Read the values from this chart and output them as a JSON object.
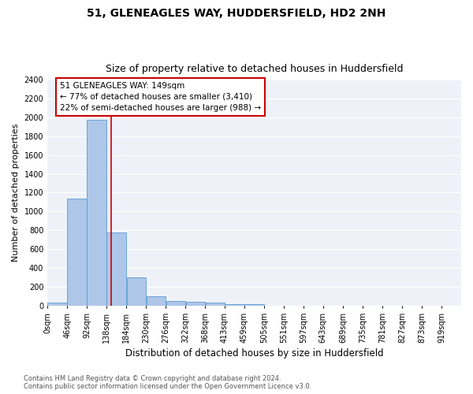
{
  "title": "51, GLENEAGLES WAY, HUDDERSFIELD, HD2 2NH",
  "subtitle": "Size of property relative to detached houses in Huddersfield",
  "xlabel": "Distribution of detached houses by size in Huddersfield",
  "ylabel": "Number of detached properties",
  "bin_labels": [
    "0sqm",
    "46sqm",
    "92sqm",
    "138sqm",
    "184sqm",
    "230sqm",
    "276sqm",
    "322sqm",
    "368sqm",
    "413sqm",
    "459sqm",
    "505sqm",
    "551sqm",
    "597sqm",
    "643sqm",
    "689sqm",
    "735sqm",
    "781sqm",
    "827sqm",
    "873sqm",
    "919sqm"
  ],
  "bin_edges": [
    0,
    46,
    92,
    138,
    184,
    230,
    276,
    322,
    368,
    413,
    459,
    505,
    551,
    597,
    643,
    689,
    735,
    781,
    827,
    873,
    919
  ],
  "bar_heights": [
    35,
    1135,
    1970,
    780,
    300,
    100,
    50,
    45,
    30,
    20,
    15,
    0,
    0,
    0,
    0,
    0,
    0,
    0,
    0,
    0
  ],
  "bar_color": "#aec6e8",
  "bar_edge_color": "#5b9bd5",
  "property_size": 149,
  "red_line_color": "#cc0000",
  "ylim": [
    0,
    2400
  ],
  "yticks": [
    0,
    200,
    400,
    600,
    800,
    1000,
    1200,
    1400,
    1600,
    1800,
    2000,
    2200,
    2400
  ],
  "annotation_text": "51 GLENEAGLES WAY: 149sqm\n← 77% of detached houses are smaller (3,410)\n22% of semi-detached houses are larger (988) →",
  "annotation_box_color": "#ffffff",
  "annotation_box_edge": "#cc0000",
  "footer_line1": "Contains HM Land Registry data © Crown copyright and database right 2024.",
  "footer_line2": "Contains public sector information licensed under the Open Government Licence v3.0.",
  "bg_color": "#eef2f8",
  "title_fontsize": 10,
  "subtitle_fontsize": 9,
  "tick_fontsize": 7,
  "xlabel_fontsize": 8.5,
  "ylabel_fontsize": 8,
  "annotation_fontsize": 7.5,
  "footer_fontsize": 6
}
